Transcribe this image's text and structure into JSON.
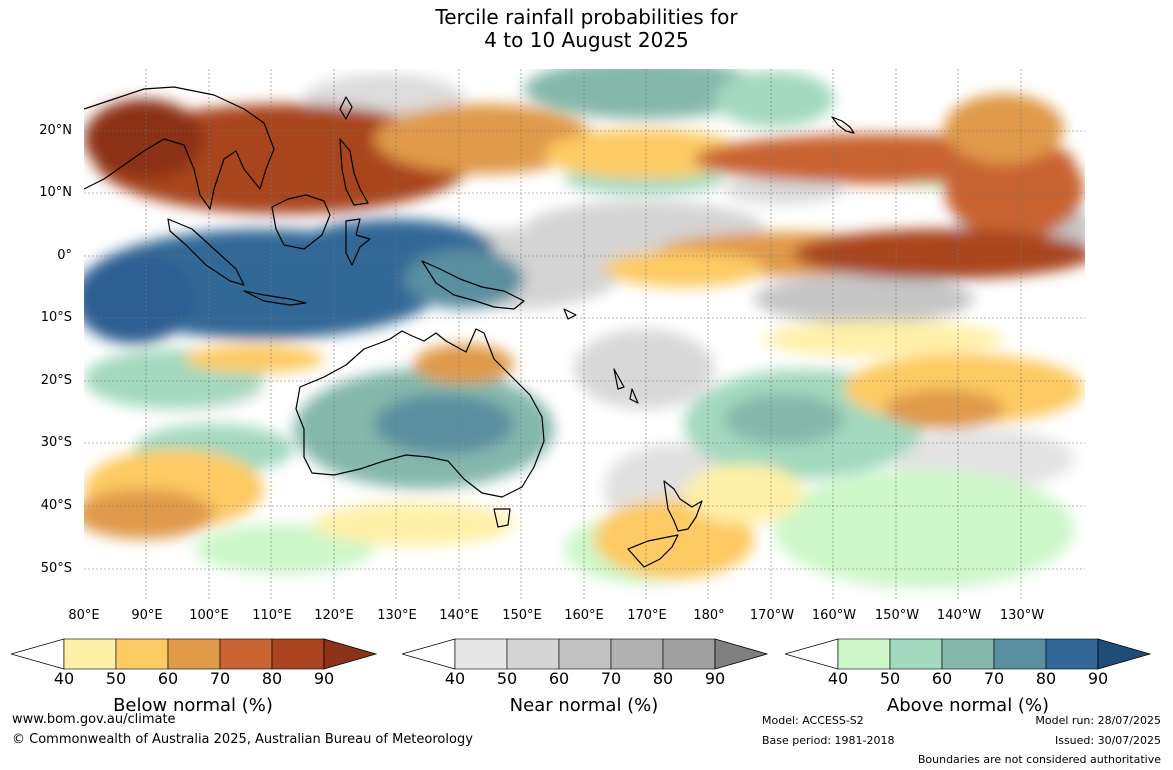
{
  "title": {
    "line1": "Tercile rainfall probabilities for",
    "line2": "4 to 10 August 2025"
  },
  "map": {
    "latitude_labels": [
      "20°N",
      "10°N",
      "0°",
      "10°S",
      "20°S",
      "30°S",
      "40°S",
      "50°S"
    ],
    "longitude_labels": [
      "80°E",
      "90°E",
      "100°E",
      "110°E",
      "120°E",
      "130°E",
      "140°E",
      "150°E",
      "160°E",
      "170°E",
      "180°",
      "170°W",
      "160°W",
      "150°W",
      "140°W",
      "130°W"
    ]
  },
  "legends": [
    {
      "title": "Below normal (%)",
      "ticks": [
        "40",
        "50",
        "60",
        "70",
        "80",
        "90"
      ],
      "colors": [
        "#fff0a8",
        "#fdca64",
        "#e09a48",
        "#c96433",
        "#a9441f",
        "#8b3219"
      ]
    },
    {
      "title": "Near normal (%)",
      "ticks": [
        "40",
        "50",
        "60",
        "70",
        "80",
        "90"
      ],
      "colors": [
        "#e7e7e7",
        "#d4d4d4",
        "#c1c1c1",
        "#b1b1b1",
        "#9f9f9f",
        "#808080"
      ]
    },
    {
      "title": "Above normal (%)",
      "ticks": [
        "40",
        "50",
        "60",
        "70",
        "80",
        "90"
      ],
      "colors": [
        "#cdf7c9",
        "#a3d9bf",
        "#84b8ab",
        "#5a8fa0",
        "#336796",
        "#1f4d7a"
      ]
    }
  ],
  "footer": {
    "website": "www.bom.gov.au/climate",
    "copyright": "© Commonwealth of Australia 2025, Australian Bureau of Meteorology",
    "model": "Model: ACCESS-S2",
    "base_period": "Base period: 1981-2018",
    "model_run": "Model run: 28/07/2025",
    "issued": "Issued: 30/07/2025",
    "boundaries": "Boundaries are not considered authoritative"
  }
}
